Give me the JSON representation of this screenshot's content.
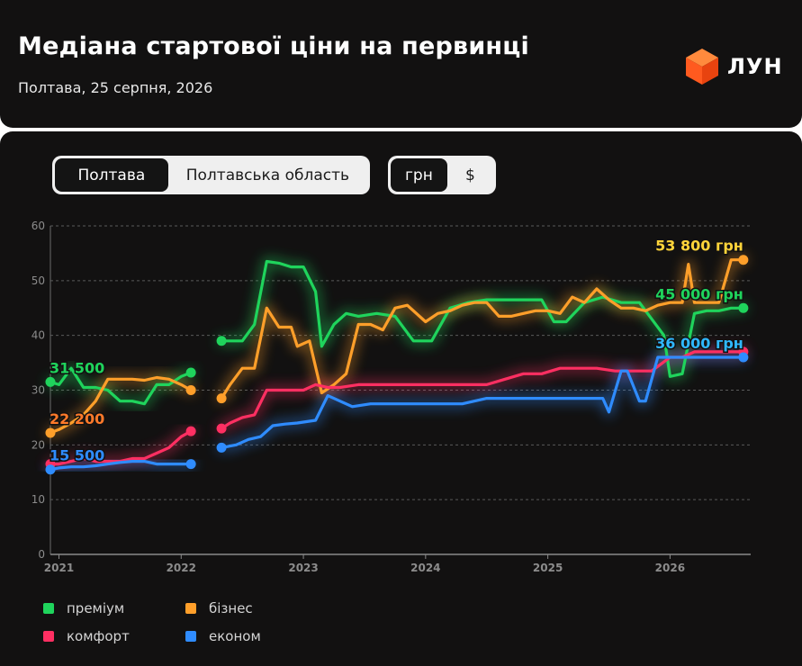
{
  "header": {
    "title": "Медіана стартової ціни на первинці",
    "subtitle": "Полтава, 25 серпня, 2026",
    "logo_text": "ЛУН",
    "logo_icon": "orange-cube-icon"
  },
  "controls": {
    "region_tabs": [
      {
        "label": "Полтава",
        "active": true
      },
      {
        "label": "Полтавська область",
        "active": false
      }
    ],
    "currency_tabs": [
      {
        "label": "грн",
        "active": true
      },
      {
        "label": "$",
        "active": false
      }
    ]
  },
  "legend": [
    {
      "label": "преміум",
      "color": "#1fd45c"
    },
    {
      "label": "бізнес",
      "color": "#ff9f2a"
    },
    {
      "label": "комфорт",
      "color": "#ff2f62"
    },
    {
      "label": "економ",
      "color": "#2f8cff"
    }
  ],
  "chart_data": {
    "type": "line",
    "x_unit": "year",
    "xlim": [
      2020.93,
      2026.66
    ],
    "ylim": [
      0,
      60
    ],
    "y_ticks": [
      "0",
      "10",
      "20",
      "30",
      "40",
      "50",
      "60"
    ],
    "x_ticks": [
      {
        "label": "2021",
        "value": 2021.0
      },
      {
        "label": "2022",
        "value": 2022.0
      },
      {
        "label": "2023",
        "value": 2023.0
      },
      {
        "label": "2024",
        "value": 2024.0
      },
      {
        "label": "2025",
        "value": 2025.0
      },
      {
        "label": "2026",
        "value": 2026.0
      }
    ],
    "grid": true,
    "series": [
      {
        "name": "преміум",
        "color": "#1fd45c",
        "segments": [
          {
            "x": [
              2020.93,
              2021.0,
              2021.1,
              2021.2,
              2021.3,
              2021.4,
              2021.5,
              2021.6,
              2021.7,
              2021.8,
              2021.9,
              2022.0,
              2022.08
            ],
            "y": [
              31.5,
              31,
              34,
              30.5,
              30.5,
              30,
              28,
              28,
              27.5,
              31,
              31,
              32.5,
              33.2
            ]
          },
          {
            "x": [
              2022.33,
              2022.4,
              2022.5,
              2022.6,
              2022.7,
              2022.8,
              2022.9,
              2023.0,
              2023.1,
              2023.15,
              2023.25,
              2023.35,
              2023.45,
              2023.6,
              2023.75,
              2023.9,
              2024.05,
              2024.2,
              2024.35,
              2024.5,
              2024.65,
              2024.8,
              2024.95,
              2025.05,
              2025.15,
              2025.3,
              2025.45,
              2025.6,
              2025.75,
              2025.85,
              2025.95,
              2026.0,
              2026.1,
              2026.2,
              2026.3,
              2026.4,
              2026.5,
              2026.6
            ],
            "y": [
              39,
              39,
              39,
              42,
              53.5,
              53.2,
              52.5,
              52.5,
              48,
              38,
              42,
              44,
              43.5,
              44,
              43.5,
              39,
              39,
              45,
              46,
              46.5,
              46.5,
              46.5,
              46.5,
              42.5,
              42.5,
              46,
              47,
              46,
              46,
              43,
              40,
              32.5,
              33,
              44,
              44.5,
              44.5,
              45,
              45
            ]
          }
        ]
      },
      {
        "name": "бізнес",
        "color": "#ff9f2a",
        "segments": [
          {
            "x": [
              2020.93,
              2021.0,
              2021.1,
              2021.2,
              2021.3,
              2021.4,
              2021.5,
              2021.6,
              2021.7,
              2021.8,
              2021.9,
              2022.0,
              2022.08
            ],
            "y": [
              22.2,
              22.8,
              24,
              25.5,
              28,
              32,
              32,
              32,
              31.8,
              32.3,
              32,
              31,
              30
            ]
          },
          {
            "x": [
              2022.33,
              2022.4,
              2022.5,
              2022.6,
              2022.7,
              2022.8,
              2022.9,
              2022.95,
              2023.05,
              2023.15,
              2023.25,
              2023.35,
              2023.45,
              2023.55,
              2023.65,
              2023.75,
              2023.85,
              2024.0,
              2024.1,
              2024.2,
              2024.3,
              2024.4,
              2024.5,
              2024.6,
              2024.7,
              2024.8,
              2024.9,
              2025.0,
              2025.1,
              2025.2,
              2025.3,
              2025.4,
              2025.5,
              2025.6,
              2025.7,
              2025.8,
              2025.9,
              2026.0,
              2026.1,
              2026.15,
              2026.2,
              2026.3,
              2026.4,
              2026.5,
              2026.6
            ],
            "y": [
              28.5,
              31,
              34,
              34,
              45,
              41.5,
              41.5,
              38,
              39,
              29.5,
              31,
              33,
              42,
              42,
              41,
              45,
              45.5,
              42.5,
              44,
              44.5,
              45.5,
              46,
              46,
              43.5,
              43.5,
              44,
              44.5,
              44.5,
              44,
              47,
              46,
              48.5,
              46.5,
              45,
              45,
              44.5,
              45.5,
              46,
              46,
              53,
              46,
              46,
              46,
              53.8,
              53.8
            ]
          }
        ]
      },
      {
        "name": "комфорт",
        "color": "#ff2f62",
        "segments": [
          {
            "x": [
              2020.93,
              2021.0,
              2021.1,
              2021.2,
              2021.3,
              2021.4,
              2021.5,
              2021.6,
              2021.7,
              2021.8,
              2021.9,
              2022.0,
              2022.08
            ],
            "y": [
              16.5,
              16.5,
              17,
              17.5,
              17,
              17,
              17,
              17.5,
              17.5,
              18.5,
              19.5,
              21.5,
              22.5
            ]
          },
          {
            "x": [
              2022.33,
              2022.4,
              2022.5,
              2022.6,
              2022.7,
              2022.8,
              2022.9,
              2023.0,
              2023.1,
              2023.2,
              2023.3,
              2023.45,
              2023.6,
              2023.75,
              2023.9,
              2024.05,
              2024.2,
              2024.35,
              2024.5,
              2024.65,
              2024.8,
              2024.95,
              2025.1,
              2025.25,
              2025.4,
              2025.55,
              2025.7,
              2025.85,
              2026.0,
              2026.1,
              2026.2,
              2026.3,
              2026.4,
              2026.5,
              2026.6
            ],
            "y": [
              23,
              24,
              25,
              25.5,
              30,
              30,
              30,
              30,
              31,
              30.5,
              30.5,
              31,
              31,
              31,
              31,
              31,
              31,
              31,
              31,
              32,
              33,
              33,
              34,
              34,
              34,
              33.5,
              33.5,
              33.5,
              36,
              36,
              37,
              37,
              37,
              37,
              37
            ]
          }
        ]
      },
      {
        "name": "економ",
        "color": "#2f8cff",
        "segments": [
          {
            "x": [
              2020.93,
              2021.0,
              2021.1,
              2021.2,
              2021.3,
              2021.4,
              2021.5,
              2021.6,
              2021.7,
              2021.8,
              2021.9,
              2022.0,
              2022.08
            ],
            "y": [
              15.5,
              15.8,
              16,
              16,
              16.2,
              16.5,
              16.8,
              17,
              17,
              16.5,
              16.5,
              16.5,
              16.5
            ]
          },
          {
            "x": [
              2022.33,
              2022.45,
              2022.55,
              2022.65,
              2022.75,
              2022.85,
              2022.95,
              2023.1,
              2023.2,
              2023.3,
              2023.4,
              2023.55,
              2023.7,
              2023.9,
              2024.1,
              2024.3,
              2024.5,
              2024.7,
              2024.9,
              2025.1,
              2025.3,
              2025.45,
              2025.5,
              2025.6,
              2025.65,
              2025.75,
              2025.8,
              2025.9,
              2025.95,
              2026.05,
              2026.15,
              2026.25,
              2026.35,
              2026.45,
              2026.6
            ],
            "y": [
              19.5,
              20,
              21,
              21.5,
              23.5,
              23.8,
              24,
              24.5,
              29,
              28,
              27,
              27.5,
              27.5,
              27.5,
              27.5,
              27.5,
              28.5,
              28.5,
              28.5,
              28.5,
              28.5,
              28.5,
              26,
              33.5,
              33.5,
              28,
              28,
              36,
              36,
              36,
              36,
              36,
              36,
              36,
              36
            ]
          }
        ]
      }
    ],
    "annotations": [
      {
        "text": "31 500",
        "x": 2020.93,
        "y": 31.5,
        "color": "#1fd45c"
      },
      {
        "text": "22 200",
        "x": 2020.93,
        "y": 22.2,
        "color": "#ff7a2a"
      },
      {
        "text": "15 500",
        "x": 2020.93,
        "y": 15.5,
        "color": "#2f8cff"
      },
      {
        "text": "53 800 грн",
        "x": 2026.6,
        "y": 53.8,
        "color": "#ffd43a"
      },
      {
        "text": "45 000 грн",
        "x": 2026.6,
        "y": 45,
        "color": "#1fd45c"
      },
      {
        "text": "36 000 грн",
        "x": 2026.6,
        "y": 36,
        "color": "#2fb8ff"
      }
    ]
  }
}
